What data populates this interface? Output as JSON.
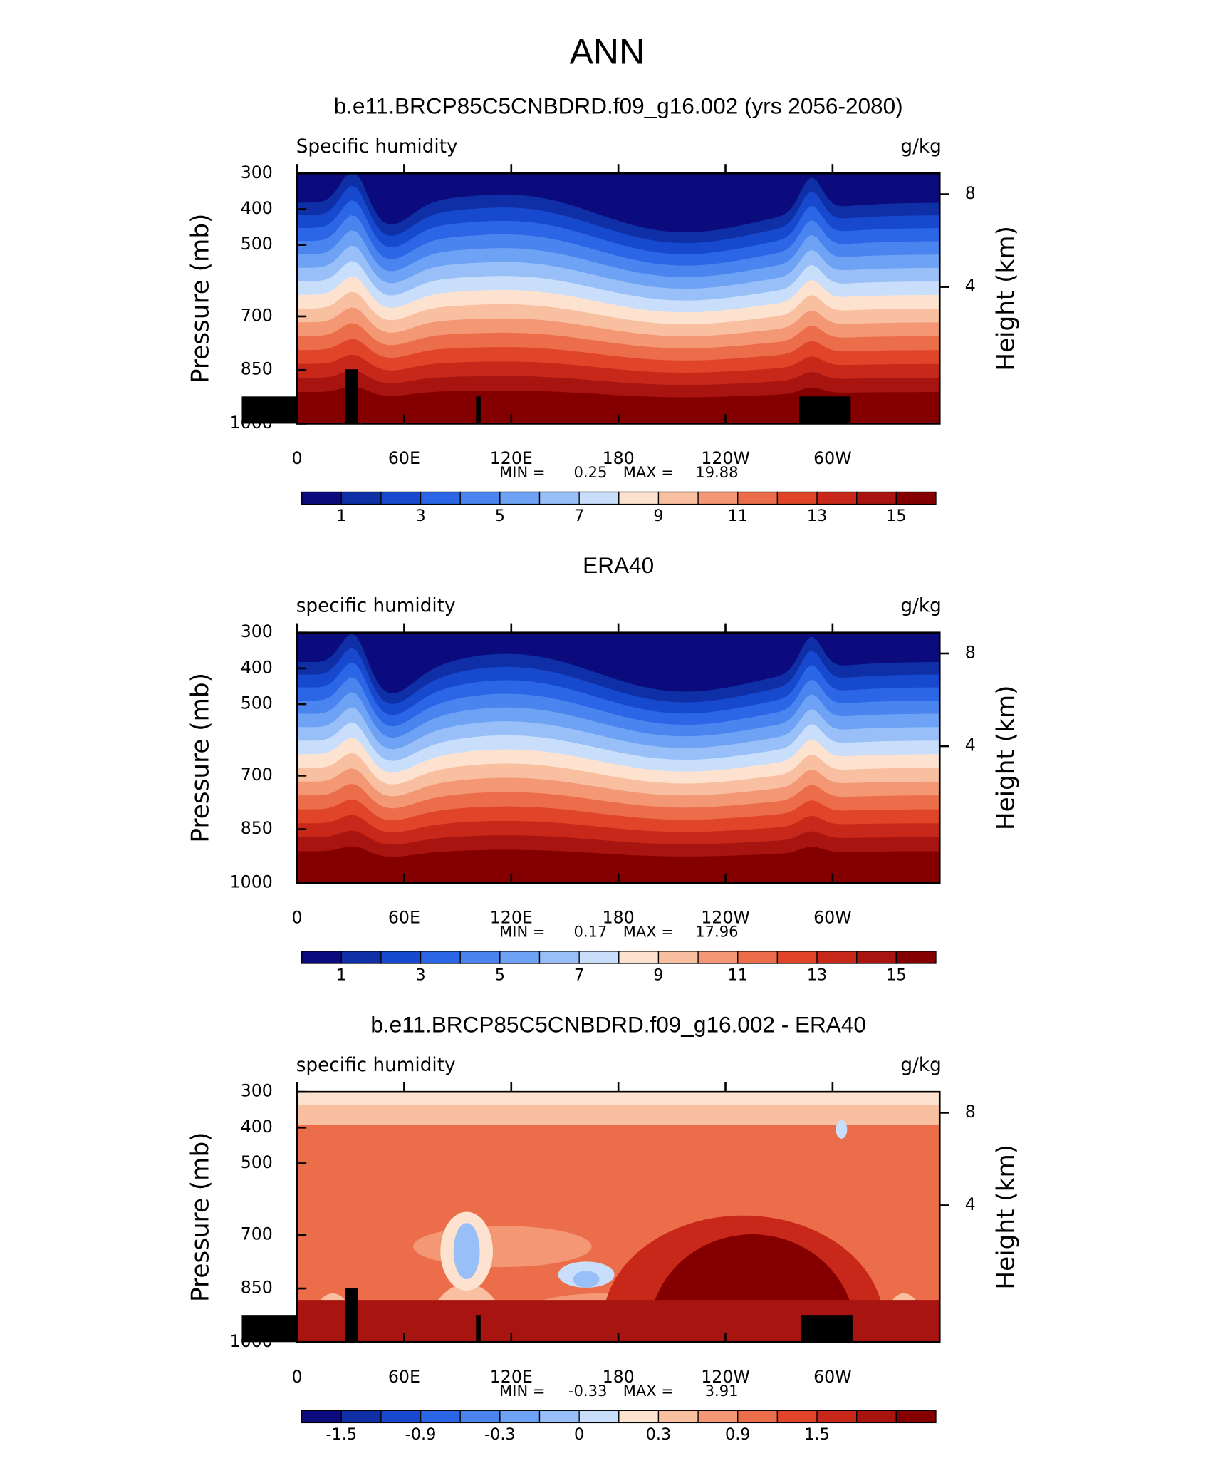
{
  "title": "ANN",
  "panels": [
    {
      "title": "b.e11.BRCP85C5CNBDRD.f09_g16.002 (yrs 2056-2080)",
      "left_label": "Specific humidity",
      "units": "g/kg",
      "y_label": "Pressure (mb)",
      "y2_label": "Height (km)",
      "ylim": [
        300,
        1000
      ],
      "yticks": [
        300,
        400,
        500,
        700,
        850,
        1000
      ],
      "y2lim": [
        -1.9,
        8.9
      ],
      "y2ticks": [
        8,
        4
      ],
      "xlim": [
        0,
        360
      ],
      "xticks": [
        0,
        {
          "value": 60,
          "label": "60E"
        },
        {
          "value": 120,
          "label": "120E"
        },
        180,
        {
          "value": 240,
          "label": "120W"
        },
        {
          "value": 300,
          "label": "60W"
        }
      ],
      "min_label": "MIN =",
      "min": 0.25,
      "max_label": "MAX =",
      "max": 19.88,
      "colorbar": {
        "colors": [
          "#0b0b7d",
          "#0f2fa6",
          "#1749cf",
          "#2a66e6",
          "#4a84ee",
          "#6ea2f4",
          "#98bff7",
          "#c8defa",
          "#fde3cf",
          "#f8bfa0",
          "#f39774",
          "#ec6d4a",
          "#e0452a",
          "#c8281a",
          "#a81410",
          "#840000"
        ],
        "labels": [
          1,
          3,
          5,
          7,
          9,
          11,
          13,
          15
        ]
      }
    },
    {
      "title": "ERA40",
      "left_label": "specific humidity",
      "units": "g/kg",
      "y_label": "Pressure (mb)",
      "y2_label": "Height (km)",
      "ylim": [
        300,
        1000
      ],
      "yticks": [
        300,
        400,
        500,
        700,
        850,
        1000
      ],
      "y2lim": [
        -1.9,
        8.9
      ],
      "y2ticks": [
        8,
        4
      ],
      "xlim": [
        0,
        360
      ],
      "xticks": [
        0,
        {
          "value": 60,
          "label": "60E"
        },
        {
          "value": 120,
          "label": "120E"
        },
        180,
        {
          "value": 240,
          "label": "120W"
        },
        {
          "value": 300,
          "label": "60W"
        }
      ],
      "min_label": "MIN =",
      "min": 0.17,
      "max_label": "MAX =",
      "max": 17.96,
      "colorbar": {
        "colors": [
          "#0b0b7d",
          "#0f2fa6",
          "#1749cf",
          "#2a66e6",
          "#4a84ee",
          "#6ea2f4",
          "#98bff7",
          "#c8defa",
          "#fde3cf",
          "#f8bfa0",
          "#f39774",
          "#ec6d4a",
          "#e0452a",
          "#c8281a",
          "#a81410",
          "#840000"
        ],
        "labels": [
          1,
          3,
          5,
          7,
          9,
          11,
          13,
          15
        ]
      }
    },
    {
      "title": "b.e11.BRCP85C5CNBDRD.f09_g16.002 - ERA40",
      "left_label": "specific humidity",
      "units": "g/kg",
      "y_label": "Pressure (mb)",
      "y2_label": "Height (km)",
      "ylim": [
        300,
        1000
      ],
      "yticks": [
        300,
        400,
        500,
        700,
        850,
        1000
      ],
      "y2lim": [
        -1.9,
        8.9
      ],
      "y2ticks": [
        8,
        4
      ],
      "xlim": [
        0,
        360
      ],
      "xticks": [
        0,
        {
          "value": 60,
          "label": "60E"
        },
        {
          "value": 120,
          "label": "120E"
        },
        180,
        {
          "value": 240,
          "label": "120W"
        },
        {
          "value": 300,
          "label": "60W"
        }
      ],
      "min_label": "MIN =",
      "min": -0.33,
      "max_label": "MAX =",
      "max": 3.91,
      "colorbar": {
        "colors": [
          "#0b0b7d",
          "#0f2fa6",
          "#1749cf",
          "#2a66e6",
          "#4a84ee",
          "#6ea2f4",
          "#98bff7",
          "#c8defa",
          "#fde3cf",
          "#f8bfa0",
          "#f39774",
          "#ec6d4a",
          "#e0452a",
          "#c8281a",
          "#a81410",
          "#840000"
        ],
        "labels": [
          -1.5,
          -0.9,
          -0.3,
          0,
          0.3,
          0.9,
          1.5
        ]
      }
    }
  ]
}
